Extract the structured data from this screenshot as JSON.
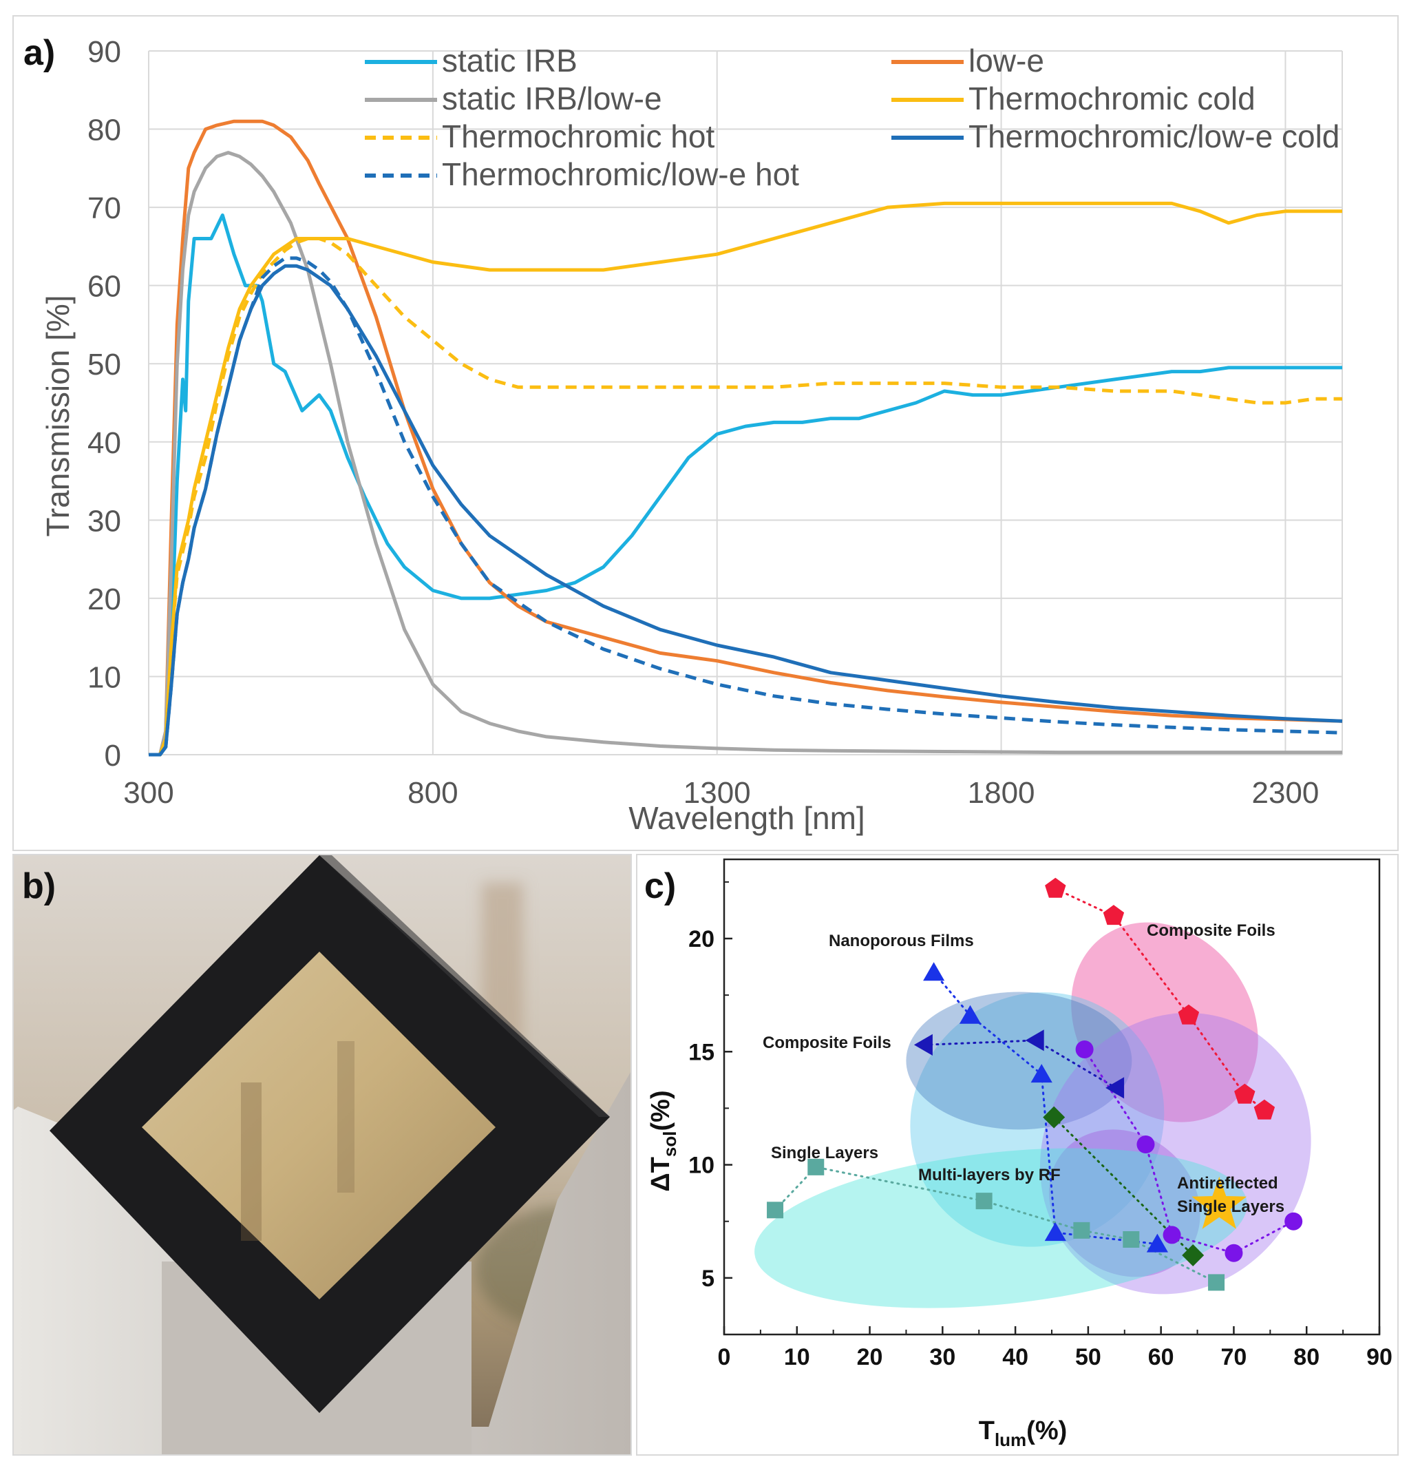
{
  "panels": {
    "a": {
      "label": "a)"
    },
    "b": {
      "label": "b)"
    },
    "c": {
      "label": "c)"
    }
  },
  "chart_data": [
    {
      "type": "line",
      "title": "",
      "xlabel": "Wavelength [nm]",
      "ylabel": "Transmission [%]",
      "xlim": [
        300,
        2400
      ],
      "ylim": [
        0,
        90
      ],
      "xticks": [
        300,
        800,
        1300,
        1800,
        2300
      ],
      "yticks": [
        0,
        10,
        20,
        30,
        40,
        50,
        60,
        70,
        80,
        90
      ],
      "grid": true,
      "legend_position": "top",
      "series": [
        {
          "name": "static IRB",
          "color": "#1cb0e0",
          "dash": false,
          "x": [
            300,
            320,
            330,
            340,
            350,
            360,
            365,
            370,
            380,
            390,
            400,
            410,
            430,
            450,
            470,
            490,
            500,
            520,
            540,
            570,
            600,
            620,
            650,
            680,
            700,
            720,
            750,
            800,
            850,
            900,
            950,
            1000,
            1050,
            1100,
            1150,
            1200,
            1250,
            1300,
            1350,
            1400,
            1450,
            1500,
            1550,
            1600,
            1650,
            1700,
            1750,
            1800,
            1900,
            2000,
            2100,
            2150,
            2200,
            2250,
            2300,
            2350,
            2400
          ],
          "y": [
            0,
            0,
            1,
            15,
            35,
            48,
            44,
            58,
            66,
            66,
            66,
            66,
            69,
            64,
            60,
            60,
            58,
            50,
            49,
            44,
            46,
            44,
            38,
            33,
            30,
            27,
            24,
            21,
            20,
            20,
            20.5,
            21,
            22,
            24,
            28,
            33,
            38,
            41,
            42,
            42.5,
            42.5,
            43,
            43,
            44,
            45,
            46.5,
            46,
            46,
            47,
            48,
            49,
            49,
            49.5,
            49.5,
            49.5,
            49.5,
            49.5
          ]
        },
        {
          "name": "low-e",
          "color": "#ee7d31",
          "dash": false,
          "x": [
            300,
            320,
            330,
            340,
            350,
            360,
            370,
            380,
            400,
            420,
            450,
            480,
            500,
            520,
            550,
            580,
            600,
            650,
            700,
            750,
            800,
            850,
            900,
            950,
            1000,
            1100,
            1200,
            1300,
            1400,
            1500,
            1600,
            1700,
            1800,
            1900,
            2000,
            2100,
            2200,
            2300,
            2400
          ],
          "y": [
            0,
            0,
            3,
            30,
            55,
            66,
            75,
            77,
            80,
            80.5,
            81,
            81,
            81,
            80.5,
            79,
            76,
            73,
            66,
            56,
            44,
            34,
            27,
            22,
            19,
            17,
            15,
            13,
            12,
            10.5,
            9.2,
            8.2,
            7.4,
            6.7,
            6.1,
            5.5,
            5,
            4.7,
            4.5,
            4.3
          ]
        },
        {
          "name": "static IRB/low-e",
          "color": "#a6a6a6",
          "dash": false,
          "x": [
            300,
            320,
            330,
            340,
            350,
            360,
            370,
            380,
            400,
            420,
            440,
            460,
            480,
            500,
            520,
            550,
            580,
            600,
            620,
            650,
            700,
            750,
            800,
            850,
            900,
            950,
            1000,
            1100,
            1200,
            1300,
            1400,
            1500,
            1700,
            1900,
            2100,
            2300,
            2400
          ],
          "y": [
            0,
            0,
            3,
            25,
            50,
            62,
            69,
            72,
            75,
            76.5,
            77,
            76.5,
            75.5,
            74,
            72,
            68,
            62,
            56,
            50,
            40,
            27,
            16,
            9,
            5.5,
            4,
            3,
            2.3,
            1.6,
            1.1,
            0.8,
            0.6,
            0.5,
            0.4,
            0.3,
            0.3,
            0.3,
            0.3
          ]
        },
        {
          "name": "Thermochromic cold",
          "color": "#fbbd12",
          "dash": false,
          "x": [
            300,
            320,
            330,
            340,
            350,
            360,
            370,
            380,
            400,
            420,
            440,
            460,
            480,
            500,
            520,
            540,
            560,
            580,
            600,
            620,
            650,
            700,
            800,
            900,
            1000,
            1100,
            1200,
            1300,
            1400,
            1500,
            1600,
            1700,
            1800,
            1900,
            2000,
            2100,
            2150,
            2200,
            2250,
            2300,
            2350,
            2400
          ],
          "y": [
            0,
            0,
            2,
            14,
            24,
            27,
            30,
            34,
            40,
            46,
            52,
            57,
            60,
            62,
            64,
            65,
            66,
            66,
            66,
            66,
            66,
            65,
            63,
            62,
            62,
            62,
            63,
            64,
            66,
            68,
            70,
            70.5,
            70.5,
            70.5,
            70.5,
            70.5,
            69.5,
            68,
            69,
            69.5,
            69.5,
            69.5
          ]
        },
        {
          "name": "Thermochromic hot",
          "color": "#fbbd12",
          "dash": true,
          "x": [
            300,
            320,
            330,
            340,
            350,
            360,
            370,
            380,
            400,
            420,
            440,
            460,
            480,
            500,
            520,
            540,
            560,
            580,
            600,
            620,
            650,
            700,
            750,
            800,
            850,
            900,
            950,
            1000,
            1100,
            1200,
            1300,
            1400,
            1500,
            1600,
            1700,
            1800,
            1900,
            2000,
            2100,
            2150,
            2200,
            2250,
            2300,
            2350,
            2400
          ],
          "y": [
            0,
            0,
            2,
            14,
            23,
            26,
            29,
            33,
            38,
            45,
            51,
            56,
            59,
            61.5,
            63,
            64.5,
            65.5,
            66,
            66,
            65.5,
            64,
            60,
            56,
            53,
            50,
            48,
            47,
            47,
            47,
            47,
            47,
            47,
            47.5,
            47.5,
            47.5,
            47,
            47,
            46.5,
            46.5,
            46,
            45.5,
            45,
            45,
            45.5,
            45.5
          ]
        },
        {
          "name": "Thermochromic/low-e cold",
          "color": "#1f6fb8",
          "dash": false,
          "x": [
            300,
            320,
            330,
            340,
            350,
            360,
            370,
            380,
            400,
            420,
            440,
            460,
            480,
            500,
            520,
            540,
            560,
            580,
            600,
            620,
            650,
            700,
            750,
            800,
            850,
            900,
            1000,
            1100,
            1200,
            1300,
            1400,
            1500,
            1600,
            1700,
            1800,
            1900,
            2000,
            2100,
            2200,
            2300,
            2400
          ],
          "y": [
            0,
            0,
            1,
            9,
            18,
            22,
            25,
            29,
            34,
            41,
            47,
            53,
            57,
            60,
            61.5,
            62.5,
            62.5,
            62,
            61,
            60,
            57,
            51,
            44,
            37,
            32,
            28,
            23,
            19,
            16,
            14,
            12.5,
            10.5,
            9.5,
            8.5,
            7.5,
            6.7,
            6,
            5.5,
            5,
            4.6,
            4.3
          ]
        },
        {
          "name": "Thermochromic/low-e hot",
          "color": "#1f6fb8",
          "dash": true,
          "x": [
            300,
            320,
            330,
            340,
            350,
            360,
            370,
            380,
            400,
            420,
            440,
            460,
            480,
            500,
            520,
            540,
            560,
            580,
            600,
            620,
            650,
            700,
            750,
            800,
            850,
            900,
            1000,
            1100,
            1200,
            1300,
            1400,
            1500,
            1600,
            1700,
            1800,
            1900,
            2000,
            2100,
            2200,
            2300,
            2400
          ],
          "y": [
            0,
            0,
            1,
            9,
            18,
            22,
            25,
            29,
            34,
            41,
            47,
            53,
            57,
            61,
            62.5,
            63.5,
            63.5,
            63,
            62,
            60.5,
            57,
            49,
            40,
            33,
            27,
            22,
            17,
            13.5,
            11,
            9,
            7.5,
            6.5,
            5.8,
            5.2,
            4.7,
            4.2,
            3.8,
            3.5,
            3.2,
            3,
            2.8
          ]
        }
      ]
    },
    {
      "type": "scatter",
      "title": "",
      "xlabel_main": "T",
      "xlabel_sub": "lum",
      "xlabel_tail": "(%)",
      "ylabel_main": "ΔT",
      "ylabel_sub": "sol",
      "ylabel_tail": "(%)",
      "xlim": [
        0,
        90
      ],
      "ylim": [
        2.5,
        23.5
      ],
      "xticks": [
        0,
        10,
        20,
        30,
        40,
        50,
        60,
        70,
        80,
        90
      ],
      "yticks": [
        5,
        10,
        15,
        20
      ],
      "groups": [
        {
          "label": "Composite Foils",
          "color": "#ec3f95",
          "ellipse": {
            "cx": 60.5,
            "cy": 16.3,
            "rx": 14.5,
            "ry": 2.4,
            "angle": 55
          }
        },
        {
          "label": "Nanoporous Films",
          "color": "#5ec8ec",
          "ellipse": {
            "cx": 43,
            "cy": 12,
            "rx": 17,
            "ry": 3.6,
            "angle": 44
          }
        },
        {
          "label": "Composite Foils",
          "color": "#4a7fc2",
          "ellipse": {
            "cx": 40.5,
            "cy": 14.6,
            "rx": 15.5,
            "ry": 1.9,
            "angle": 0
          }
        },
        {
          "label": "Multi-layers by RF",
          "color": "#a34bd0",
          "ellipse": {
            "cx": 55,
            "cy": 8.3,
            "rx": 11,
            "ry": 1.9,
            "angle": 40
          }
        },
        {
          "label": "Antireflected Single Layers",
          "color": "#a476ee",
          "ellipse": {
            "cx": 62,
            "cy": 10.5,
            "rx": 18,
            "ry": 4.0,
            "angle": 34
          }
        },
        {
          "label": "Single Layers",
          "color": "#4ee4dc",
          "ellipse": {
            "cx": 38,
            "cy": 7.2,
            "rx": 34,
            "ry": 2.1,
            "angle": -6
          }
        }
      ],
      "series": [
        {
          "name": "pentagons",
          "marker": "pentagon",
          "color": "#ef1a3a",
          "x": [
            45.5,
            53.5,
            63.8,
            71.5,
            74.2
          ],
          "y": [
            22.2,
            21.0,
            16.6,
            13.1,
            12.4
          ]
        },
        {
          "name": "triangles up",
          "marker": "triangle-up",
          "color": "#1a33e8",
          "x": [
            28.8,
            33.8,
            43.6,
            45.5,
            59.5
          ],
          "y": [
            18.5,
            16.6,
            14.0,
            7.0,
            6.5
          ]
        },
        {
          "name": "triangles left",
          "marker": "triangle-left",
          "color": "#1a18b8",
          "x": [
            27.5,
            42.8,
            53.8
          ],
          "y": [
            15.3,
            15.5,
            13.4
          ]
        },
        {
          "name": "circles",
          "marker": "circle",
          "color": "#7a14e8",
          "x": [
            49.5,
            57.9,
            61.5,
            70.0,
            78.2
          ],
          "y": [
            15.1,
            10.9,
            6.9,
            6.1,
            7.5
          ]
        },
        {
          "name": "diamonds",
          "marker": "diamond",
          "color": "#1b6616",
          "x": [
            45.3,
            64.4
          ],
          "y": [
            12.1,
            6.0
          ]
        },
        {
          "name": "squares",
          "marker": "square",
          "color": "#5aa99f",
          "x": [
            7.0,
            12.6,
            35.7,
            49.1,
            55.9,
            67.6
          ],
          "y": [
            8.0,
            9.9,
            8.4,
            7.1,
            6.7,
            4.8
          ]
        },
        {
          "name": "star",
          "marker": "star",
          "color": "#fbbd12",
          "x": [
            68.0
          ],
          "y": [
            8.2
          ]
        }
      ],
      "annotations": [
        "Composite Foils",
        "Nanoporous Films",
        "Composite Foils",
        "Single Layers",
        "Multi-layers by RF",
        "Antireflected",
        "Single Layers"
      ]
    }
  ]
}
